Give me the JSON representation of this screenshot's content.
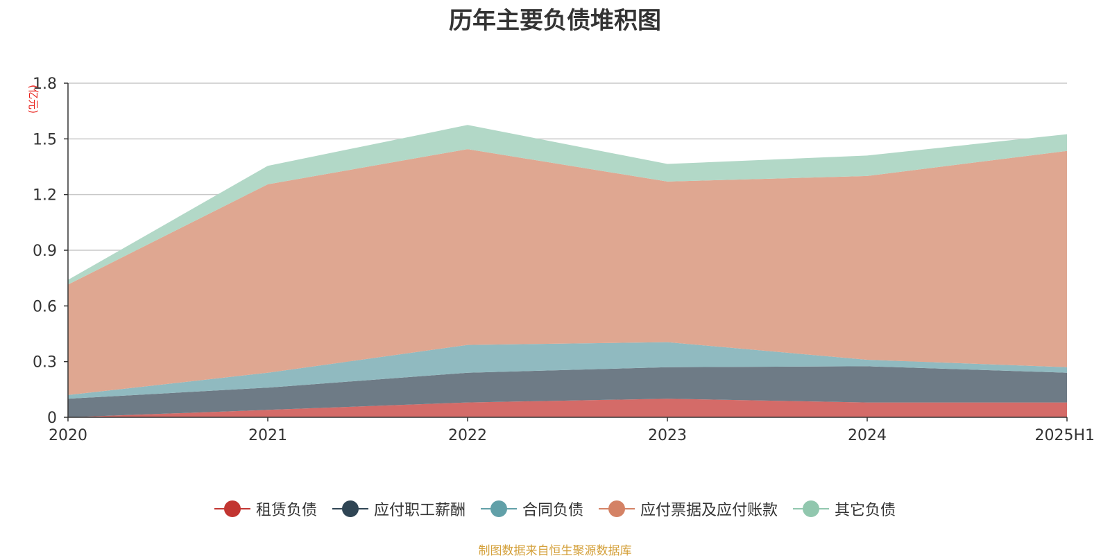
{
  "chart_data": {
    "type": "area",
    "stacked": true,
    "title": "历年主要负债堆积图",
    "ylabel": "(亿元)",
    "xlabel": "",
    "categories": [
      "2020",
      "2021",
      "2022",
      "2023",
      "2024",
      "2025H1"
    ],
    "ylim": [
      0,
      1.8
    ],
    "yticks": [
      "0",
      "0.3",
      "0.6",
      "0.9",
      "1.2",
      "1.5",
      "1.8"
    ],
    "grid": true,
    "legend_position": "bottom",
    "series": [
      {
        "name": "租赁负债",
        "values": [
          0.0,
          0.04,
          0.08,
          0.1,
          0.08,
          0.08
        ],
        "color": "#c23531",
        "fill": "#d46b68"
      },
      {
        "name": "应付职工薪酬",
        "values": [
          0.1,
          0.12,
          0.16,
          0.17,
          0.195,
          0.16
        ],
        "color": "#2f4554",
        "fill": "#6e7b86"
      },
      {
        "name": "合同负债",
        "values": [
          0.02,
          0.08,
          0.15,
          0.135,
          0.035,
          0.03
        ],
        "color": "#61a0a8",
        "fill": "#90bac0"
      },
      {
        "name": "应付票据及应付账款",
        "values": [
          0.595,
          1.015,
          1.055,
          0.865,
          0.99,
          1.165
        ],
        "color": "#d48265",
        "fill": "#dfa791"
      },
      {
        "name": "其它负债",
        "values": [
          0.025,
          0.1,
          0.13,
          0.095,
          0.11,
          0.09
        ],
        "color": "#91c7ae",
        "fill": "#b2d8c7"
      }
    ]
  },
  "source_note": "制图数据来自恒生聚源数据库"
}
